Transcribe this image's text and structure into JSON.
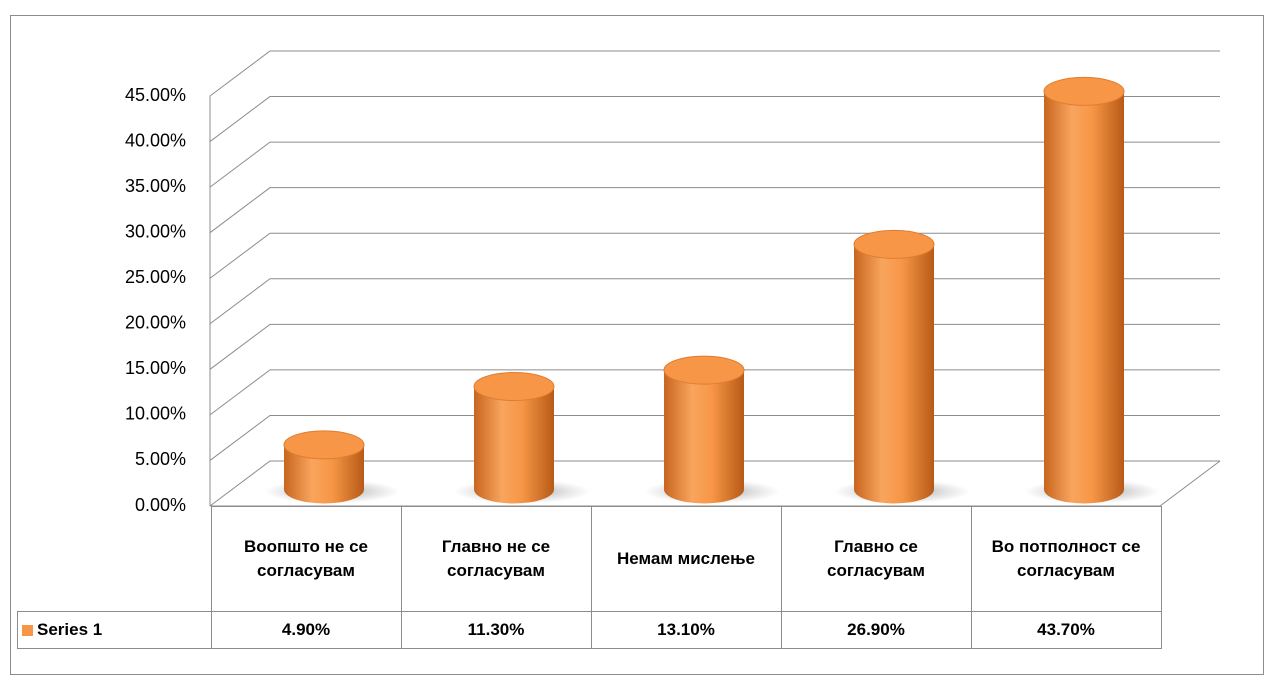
{
  "chart_data": {
    "type": "bar",
    "categories": [
      "Воопшто не се согласувам",
      "Главно не се согласувам",
      "Немам мислење",
      "Главно се согласувам",
      "Во потполност се согласувам"
    ],
    "series": [
      {
        "name": "Series 1",
        "color": "#f79646",
        "values": [
          4.9,
          11.3,
          13.1,
          26.9,
          43.7
        ],
        "value_labels": [
          "4.90%",
          "11.30%",
          "13.10%",
          "26.90%",
          "43.70%"
        ]
      }
    ],
    "ylim": [
      0,
      45
    ],
    "yticks": [
      {
        "value": 0,
        "label": "0.00%"
      },
      {
        "value": 5,
        "label": "5.00%"
      },
      {
        "value": 10,
        "label": "10.00%"
      },
      {
        "value": 15,
        "label": "15.00%"
      },
      {
        "value": 20,
        "label": "20.00%"
      },
      {
        "value": 25,
        "label": "25.00%"
      },
      {
        "value": 30,
        "label": "30.00%"
      },
      {
        "value": 35,
        "label": "35.00%"
      },
      {
        "value": 40,
        "label": "40.00%"
      },
      {
        "value": 45,
        "label": "45.00%"
      }
    ],
    "grid": true
  }
}
